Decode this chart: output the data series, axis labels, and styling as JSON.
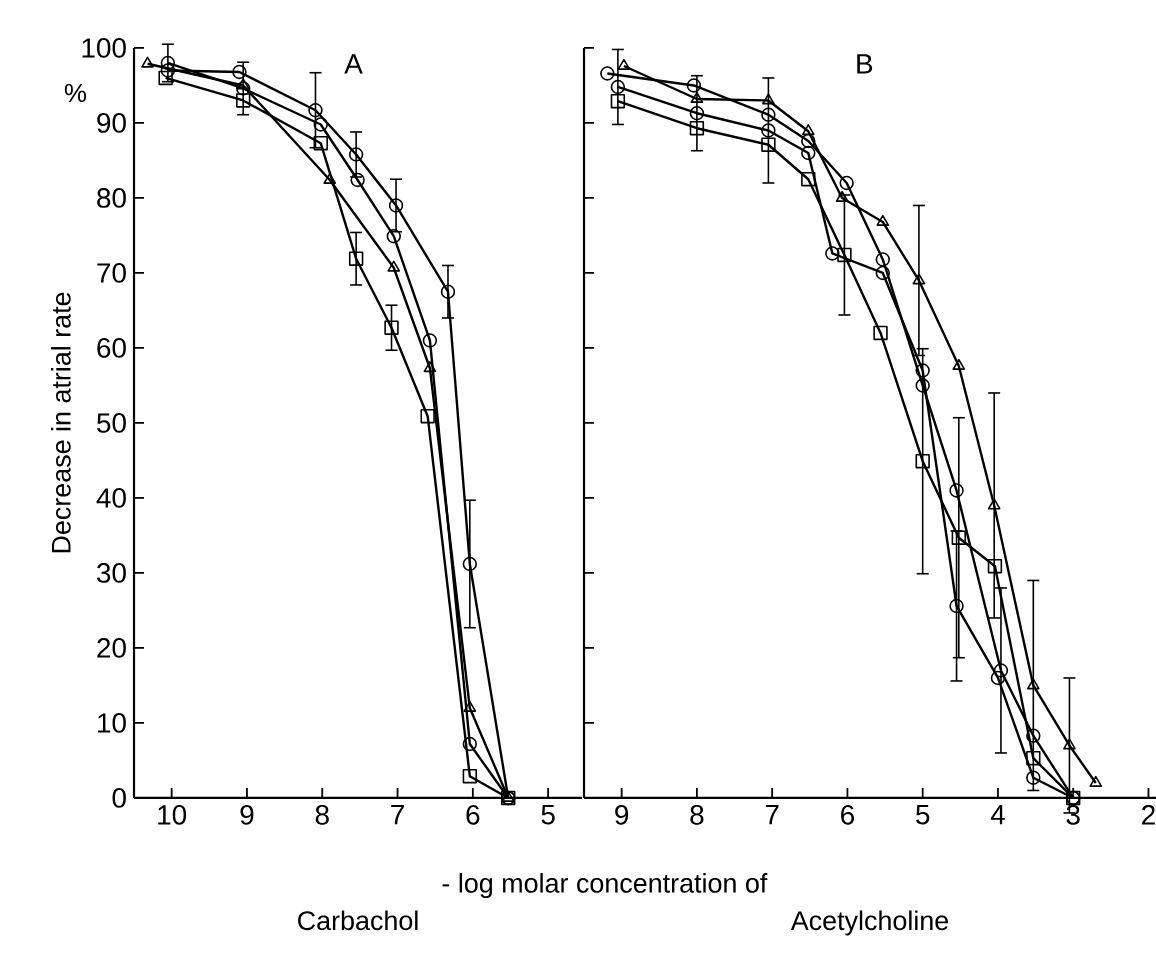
{
  "chart_data": [
    {
      "type": "line",
      "title": "A",
      "xlabel": "Carbachol",
      "ylabel": "Decrease in atrial rate",
      "annotations": [
        "%",
        "- log molar concentration of"
      ],
      "xlim": [
        10.5,
        4.55
      ],
      "xticks": [
        10,
        9,
        8,
        7,
        6,
        5
      ],
      "ylim": [
        0,
        100
      ],
      "yticks": [
        0,
        10,
        20,
        30,
        40,
        50,
        60,
        70,
        80,
        90,
        100
      ],
      "series": [
        {
          "color": "#000000",
          "marker": "circle",
          "x": [
            10.05,
            9.1,
            8.09,
            7.55,
            7.02,
            6.33,
            6.04,
            5.53
          ],
          "values": [
            97,
            96.8,
            91.7,
            85.8,
            79,
            67.5,
            31.2,
            0
          ],
          "errors": [
            null,
            null,
            5,
            3,
            3.5,
            3.5,
            8.5,
            null
          ]
        },
        {
          "color": "#000000",
          "marker": "circle",
          "x": [
            10.05,
            9.05,
            8.02,
            7.53,
            7.05,
            6.57,
            6.04,
            5.53
          ],
          "values": [
            98,
            94.6,
            89.8,
            82.4,
            74.9,
            61,
            7.2,
            0
          ],
          "errors": [
            2.5,
            3.5,
            null,
            null,
            null,
            null,
            null,
            null
          ]
        },
        {
          "color": "#000000",
          "marker": "triangle",
          "x": [
            10.32,
            9.05,
            7.9,
            7.05,
            6.57,
            6.04,
            5.53
          ],
          "values": [
            97.9,
            95,
            82.4,
            70.7,
            57.3,
            12,
            0
          ]
        },
        {
          "color": "#000000",
          "marker": "square",
          "x": [
            10.08,
            9.05,
            8.02,
            7.55,
            7.08,
            6.6,
            6.04,
            5.53
          ],
          "values": [
            96,
            93,
            87.3,
            71.9,
            62.7,
            50.9,
            2.9,
            0
          ],
          "errors": [
            null,
            null,
            null,
            3.5,
            3,
            null,
            null,
            null
          ]
        }
      ]
    },
    {
      "type": "line",
      "title": "B",
      "xlabel": "Acetylcholine",
      "tick_labels": "x",
      "xlim": [
        9.5,
        1.9
      ],
      "xticks": [
        9,
        8,
        7,
        6,
        5,
        4,
        3,
        2
      ],
      "ylim": [
        0,
        100
      ],
      "yticks": [
        0,
        10,
        20,
        30,
        40,
        50,
        60,
        70,
        80,
        90,
        100
      ],
      "series": [
        {
          "color": "#000000",
          "marker": "circle",
          "x": [
            9.19,
            8.04,
            7.05,
            6.52,
            6.01,
            5.53,
            5.0,
            4.55,
            3.96,
            3.53,
            3.0
          ],
          "values": [
            96.6,
            95,
            91.1,
            87.6,
            82,
            71.8,
            55,
            41,
            17,
            8.3,
            0
          ],
          "errors": [
            null,
            null,
            null,
            null,
            null,
            null,
            null,
            null,
            11,
            null,
            null
          ]
        },
        {
          "color": "#000000",
          "marker": "circle",
          "x": [
            9.05,
            8.0,
            7.05,
            6.52,
            6.2,
            5.53,
            5.0,
            4.55,
            4.0,
            3.53,
            3.0
          ],
          "values": [
            94.8,
            91.3,
            89,
            86,
            72.6,
            70,
            57,
            25.6,
            16,
            2.7,
            0
          ],
          "errors": [
            5,
            5,
            7,
            null,
            null,
            null,
            null,
            10,
            null,
            null,
            null
          ]
        },
        {
          "color": "#000000",
          "marker": "triangle",
          "x": [
            8.97,
            8.0,
            7.05,
            6.52,
            6.07,
            5.53,
            5.05,
            4.52,
            4.05,
            3.53,
            3.05,
            2.7
          ],
          "values": [
            97.6,
            93.2,
            93,
            88.9,
            80,
            76.8,
            69,
            57.6,
            39,
            15,
            7,
            2
          ],
          "errors": [
            null,
            null,
            null,
            null,
            null,
            null,
            10,
            null,
            15,
            14,
            9,
            null
          ]
        },
        {
          "color": "#000000",
          "marker": "square",
          "x": [
            9.05,
            8.0,
            7.05,
            6.52,
            6.04,
            5.56,
            5.0,
            4.52,
            4.04,
            3.53,
            3.0
          ],
          "values": [
            92.9,
            89.3,
            87.1,
            82.5,
            72.4,
            62,
            44.9,
            34.7,
            30.9,
            5.3,
            0
          ],
          "errors": [
            null,
            null,
            null,
            null,
            8,
            null,
            15,
            16,
            null,
            null,
            null
          ]
        }
      ]
    }
  ]
}
